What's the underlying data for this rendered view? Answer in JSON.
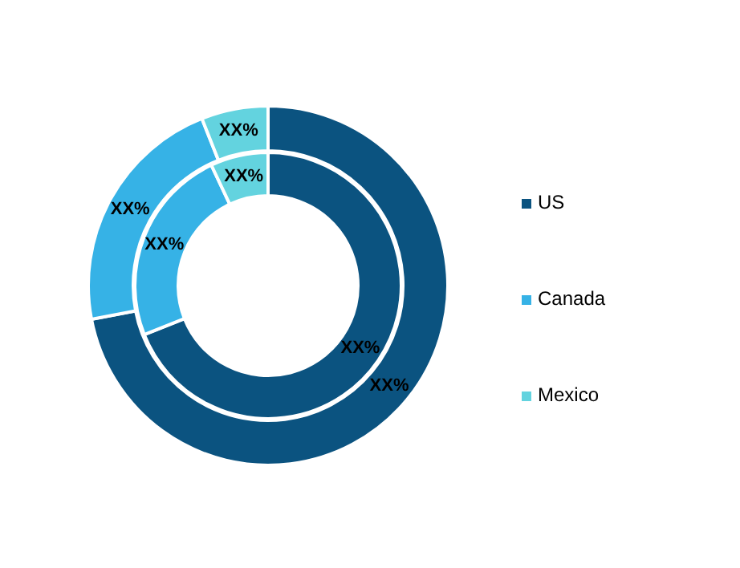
{
  "chart_data": {
    "type": "donut",
    "categories": [
      "US",
      "Canada",
      "Mexico"
    ],
    "colors": [
      "#0b5380",
      "#36b2e6",
      "#63d3df"
    ],
    "series": [
      {
        "values": [
          72,
          22,
          6
        ],
        "value_labels": [
          "XX%",
          "XX%",
          "XX%"
        ]
      },
      {
        "values": [
          69,
          24,
          7
        ],
        "value_labels": [
          "XX%",
          "XX%",
          "XX%"
        ]
      }
    ],
    "legend": "right"
  }
}
